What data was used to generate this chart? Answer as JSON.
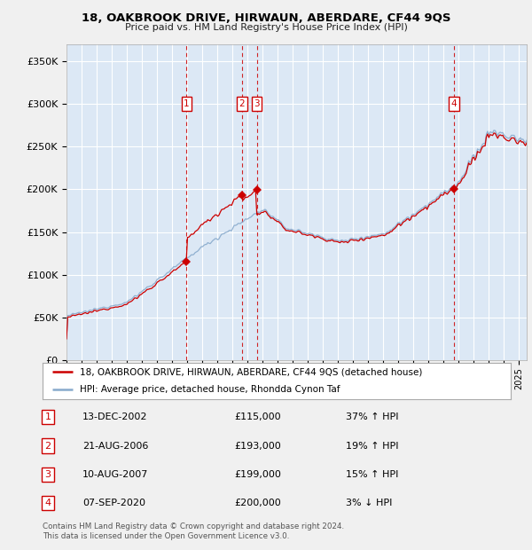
{
  "title": "18, OAKBROOK DRIVE, HIRWAUN, ABERDARE, CF44 9QS",
  "subtitle": "Price paid vs. HM Land Registry's House Price Index (HPI)",
  "ylabel_ticks": [
    "£0",
    "£50K",
    "£100K",
    "£150K",
    "£200K",
    "£250K",
    "£300K",
    "£350K"
  ],
  "ytick_values": [
    0,
    50000,
    100000,
    150000,
    200000,
    250000,
    300000,
    350000
  ],
  "ylim": [
    0,
    370000
  ],
  "xlim_start": 1995.0,
  "xlim_end": 2025.5,
  "fig_bg_color": "#f0f0f0",
  "plot_bg_color": "#dce8f5",
  "grid_color": "#ffffff",
  "red_line_color": "#cc0000",
  "blue_line_color": "#88aacc",
  "transactions": [
    {
      "num": 1,
      "date": "13-DEC-2002",
      "price": 115000,
      "year": 2002.96
    },
    {
      "num": 2,
      "date": "21-AUG-2006",
      "price": 193000,
      "year": 2006.63
    },
    {
      "num": 3,
      "date": "10-AUG-2007",
      "price": 199000,
      "year": 2007.61
    },
    {
      "num": 4,
      "date": "07-SEP-2020",
      "price": 200000,
      "year": 2020.69
    }
  ],
  "legend_red_label": "18, OAKBROOK DRIVE, HIRWAUN, ABERDARE, CF44 9QS (detached house)",
  "legend_blue_label": "HPI: Average price, detached house, Rhondda Cynon Taf",
  "footnote": "Contains HM Land Registry data © Crown copyright and database right 2024.\nThis data is licensed under the Open Government Licence v3.0.",
  "table_rows": [
    [
      "1",
      "13-DEC-2002",
      "£115,000",
      "37% ↑ HPI"
    ],
    [
      "2",
      "21-AUG-2006",
      "£193,000",
      "19% ↑ HPI"
    ],
    [
      "3",
      "10-AUG-2007",
      "£199,000",
      "15% ↑ HPI"
    ],
    [
      "4",
      "07-SEP-2020",
      "£200,000",
      "3% ↓ HPI"
    ]
  ]
}
